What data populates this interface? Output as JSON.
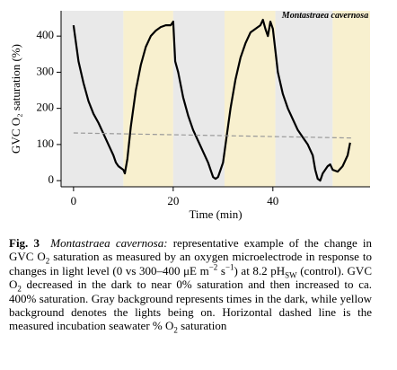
{
  "chart_data": {
    "type": "line",
    "annotation": "Montastraea cavernosa",
    "xlabel": "Time (min)",
    "ylabel": "GVC O₂ saturation (%)",
    "xlim": [
      -2.5,
      59.5
    ],
    "ylim": [
      -17,
      470
    ],
    "xticks": [
      0,
      20,
      40
    ],
    "yticks": [
      0,
      100,
      200,
      300,
      400
    ],
    "shading": [
      {
        "start": -2.5,
        "end": 10,
        "color": "#e9e9e9"
      },
      {
        "start": 10,
        "end": 20,
        "color": "#f8f0cf"
      },
      {
        "start": 20,
        "end": 30.3,
        "color": "#e9e9e9"
      },
      {
        "start": 30.3,
        "end": 40.5,
        "color": "#f8f0cf"
      },
      {
        "start": 40.5,
        "end": 52,
        "color": "#e9e9e9"
      },
      {
        "start": 52,
        "end": 59.5,
        "color": "#f8f0cf"
      }
    ],
    "series": [
      {
        "color": "#000000",
        "x": [
          0,
          0.5,
          1,
          2,
          3,
          4,
          5,
          6,
          7,
          8,
          8.5,
          9,
          10,
          10.3,
          10.8,
          11.5,
          12.5,
          13.5,
          14.5,
          15.5,
          16.5,
          17.5,
          18.5,
          19.5,
          20,
          20.4,
          21,
          22,
          23,
          24,
          25,
          26,
          27,
          27.5,
          28,
          28.5,
          29,
          29.5,
          30,
          30.5,
          31.5,
          32.5,
          33.5,
          34.5,
          35.5,
          36.5,
          37.5,
          38,
          38.5,
          39,
          39.5,
          40,
          40.5,
          41,
          42,
          43,
          44,
          45,
          46,
          47,
          48,
          48.5,
          49,
          49.5,
          50,
          51,
          51.5,
          52,
          53,
          54,
          55,
          55.5
        ],
        "values": [
          430,
          380,
          330,
          270,
          220,
          185,
          160,
          130,
          100,
          70,
          50,
          40,
          30,
          20,
          60,
          150,
          250,
          320,
          370,
          400,
          415,
          425,
          430,
          430,
          440,
          330,
          300,
          230,
          180,
          140,
          110,
          80,
          50,
          30,
          10,
          5,
          10,
          30,
          50,
          100,
          200,
          280,
          340,
          380,
          410,
          420,
          430,
          445,
          420,
          400,
          440,
          420,
          360,
          300,
          240,
          200,
          170,
          140,
          120,
          100,
          70,
          30,
          5,
          0,
          20,
          40,
          45,
          30,
          25,
          40,
          70,
          105
        ]
      },
      {
        "color": "#999999",
        "dash": true,
        "x": [
          0,
          56
        ],
        "values": [
          132,
          118
        ]
      }
    ]
  },
  "caption": [
    {
      "text": "Fig. 3",
      "style": "bold"
    },
    {
      "text": "  ",
      "style": "normal"
    },
    {
      "text": "Montastraea cavernosa:",
      "style": "italic"
    },
    {
      "text": " representative example of the change in GVC O",
      "style": "normal"
    },
    {
      "text": "2",
      "style": "sub"
    },
    {
      "text": " saturation as measured by an oxygen microelectrode in response to changes in light level (0 vs 300–400 μE m",
      "style": "normal"
    },
    {
      "text": "−2",
      "style": "sup"
    },
    {
      "text": " s",
      "style": "normal"
    },
    {
      "text": "−1",
      "style": "sup"
    },
    {
      "text": ") at 8.2 pH",
      "style": "normal"
    },
    {
      "text": "SW",
      "style": "sub"
    },
    {
      "text": " (control). GVC O",
      "style": "normal"
    },
    {
      "text": "2",
      "style": "sub"
    },
    {
      "text": " decreased in the dark to near 0% saturation and then increased to ca. 400% saturation. Gray background represents times in the dark, while yellow background denotes the lights being on. Horizontal dashed line is the measured incubation seawater % O",
      "style": "normal"
    },
    {
      "text": "2",
      "style": "sub"
    },
    {
      "text": " saturation",
      "style": "normal"
    }
  ]
}
